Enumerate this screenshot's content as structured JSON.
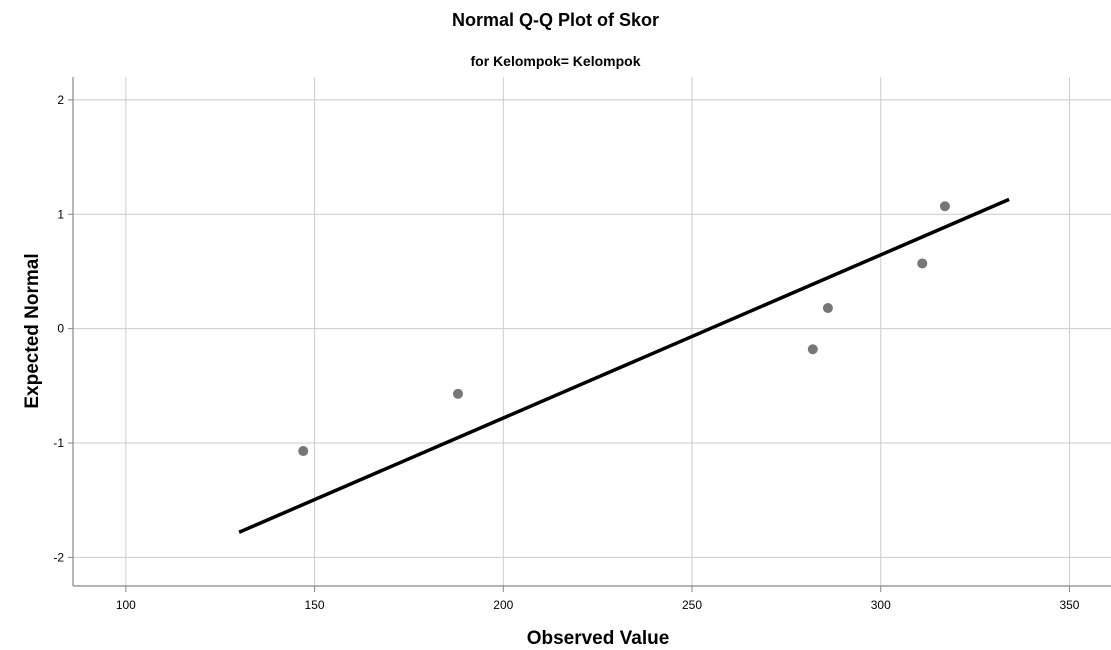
{
  "chart_data": {
    "type": "scatter",
    "title": "Normal Q-Q Plot of Skor",
    "subtitle": "for Kelompok= Kelompok",
    "xlabel": "Observed Value",
    "ylabel": "Expected Normal",
    "xlim": [
      86,
      361
    ],
    "ylim": [
      -2.25,
      2.2
    ],
    "xticks": [
      100,
      150,
      200,
      250,
      300,
      350
    ],
    "yticks": [
      2,
      1,
      0,
      -1,
      -2
    ],
    "xtick_labels": [
      "100",
      "150",
      "200",
      "250",
      "300",
      "350"
    ],
    "ytick_labels": [
      "2",
      "1",
      "0",
      "-1",
      "-2"
    ],
    "grid": true,
    "points": [
      {
        "x": 147,
        "y": -1.07
      },
      {
        "x": 188,
        "y": -0.57
      },
      {
        "x": 282,
        "y": -0.18
      },
      {
        "x": 286,
        "y": 0.18
      },
      {
        "x": 311,
        "y": 0.57
      },
      {
        "x": 317,
        "y": 1.07
      }
    ],
    "reference_line": {
      "x": [
        130,
        334
      ],
      "y": [
        -1.78,
        1.13
      ]
    },
    "colors": {
      "point": "#777777",
      "line": "#000000",
      "grid": "#cccccc",
      "axis": "#888888"
    }
  }
}
